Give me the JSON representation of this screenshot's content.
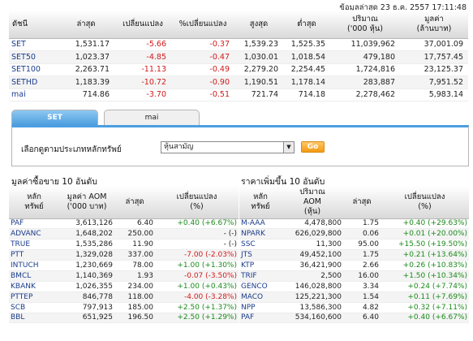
{
  "updated": "ข้อมูลล่าสุด 23 ธ.ค. 2557 17:11:48",
  "index_table": {
    "headers": [
      "ดัชนี",
      "ล่าสุด",
      "เปลี่ยนแปลง",
      "%เปลี่ยนแปลง",
      "สูงสุด",
      "ต่ำสุด",
      "ปริมาณ\n('000 หุ้น)",
      "มูลค่า\n(ล้านบาท)"
    ],
    "rows": [
      {
        "name": "SET",
        "last": "1,531.17",
        "change": "-5.66",
        "pct": "-0.37",
        "high": "1,539.23",
        "low": "1,525.35",
        "volume": "11,039,962",
        "value": "37,001.09"
      },
      {
        "name": "SET50",
        "last": "1,023.37",
        "change": "-4.85",
        "pct": "-0.47",
        "high": "1,030.01",
        "low": "1,018.54",
        "volume": "479,180",
        "value": "17,757.45"
      },
      {
        "name": "SET100",
        "last": "2,263.71",
        "change": "-11.13",
        "pct": "-0.49",
        "high": "2,279.20",
        "low": "2,254.45",
        "volume": "1,724,816",
        "value": "23,125.37"
      },
      {
        "name": "SETHD",
        "last": "1,183.39",
        "change": "-10.72",
        "pct": "-0.90",
        "high": "1,190.51",
        "low": "1,178.14",
        "volume": "283,887",
        "value": "7,951.52"
      },
      {
        "name": "mai",
        "last": "714.86",
        "change": "-3.70",
        "pct": "-0.51",
        "high": "721.74",
        "low": "714.18",
        "volume": "2,278,462",
        "value": "5,983.14"
      }
    ]
  },
  "tabs": {
    "set": "SET",
    "mai": "mai"
  },
  "filter": {
    "label": "เลือกดูตามประเภทหลักทรัพย์",
    "selected": "หุ้นสามัญ",
    "go": "Go"
  },
  "left": {
    "title": "มูลค่าซื้อขาย 10 อันดับ",
    "headers": [
      "หลัก\nทรัพย์",
      "มูลค่า AOM\n('000 บาท)",
      "ล่าสุด",
      "เปลี่ยนแปลง\n(%)"
    ],
    "rows": [
      {
        "sym": "PAF",
        "val": "3,613,126",
        "last": "6.40",
        "chg": "+0.40 (+6.67%)",
        "dir": "pos"
      },
      {
        "sym": "ADVANC",
        "val": "1,648,202",
        "last": "250.00",
        "chg": "- (-)",
        "dir": "flat"
      },
      {
        "sym": "TRUE",
        "val": "1,535,286",
        "last": "11.90",
        "chg": "- (-)",
        "dir": "flat"
      },
      {
        "sym": "PTT",
        "val": "1,329,028",
        "last": "337.00",
        "chg": "-7.00 (-2.03%)",
        "dir": "neg"
      },
      {
        "sym": "INTUCH",
        "val": "1,230,669",
        "last": "78.00",
        "chg": "+1.00 (+1.30%)",
        "dir": "pos"
      },
      {
        "sym": "BMCL",
        "val": "1,140,369",
        "last": "1.93",
        "chg": "-0.07 (-3.50%)",
        "dir": "neg"
      },
      {
        "sym": "KBANK",
        "val": "1,026,355",
        "last": "234.00",
        "chg": "+1.00 (+0.43%)",
        "dir": "pos"
      },
      {
        "sym": "PTTEP",
        "val": "846,778",
        "last": "118.00",
        "chg": "-4.00 (-3.28%)",
        "dir": "neg"
      },
      {
        "sym": "SCB",
        "val": "797,913",
        "last": "185.00",
        "chg": "+2.50 (+1.37%)",
        "dir": "pos"
      },
      {
        "sym": "BBL",
        "val": "651,925",
        "last": "196.50",
        "chg": "+2.50 (+1.29%)",
        "dir": "pos"
      }
    ]
  },
  "right": {
    "title": "ราคาเพิ่มขึ้น 10 อันดับ",
    "headers": [
      "หลัก\nทรัพย์",
      "ปริมาณ\nAOM\n(หุ้น)",
      "ล่าสุด",
      "เปลี่ยนแปลง\n(%)"
    ],
    "rows": [
      {
        "sym": "M-AAA",
        "vol": "4,478,800",
        "last": "1.75",
        "chg": "+0.40 (+29.63%)",
        "dir": "pos"
      },
      {
        "sym": "NPARK",
        "vol": "626,029,800",
        "last": "0.06",
        "chg": "+0.01 (+20.00%)",
        "dir": "pos"
      },
      {
        "sym": "SSC",
        "vol": "11,300",
        "last": "95.00",
        "chg": "+15.50 (+19.50%)",
        "dir": "pos"
      },
      {
        "sym": "JTS",
        "vol": "49,452,100",
        "last": "1.75",
        "chg": "+0.21 (+13.64%)",
        "dir": "pos"
      },
      {
        "sym": "KTP",
        "vol": "36,421,900",
        "last": "2.66",
        "chg": "+0.26 (+10.83%)",
        "dir": "pos"
      },
      {
        "sym": "TRIF",
        "vol": "2,500",
        "last": "16.00",
        "chg": "+1.50 (+10.34%)",
        "dir": "pos"
      },
      {
        "sym": "GENCO",
        "vol": "146,028,800",
        "last": "3.34",
        "chg": "+0.24 (+7.74%)",
        "dir": "pos"
      },
      {
        "sym": "MACO",
        "vol": "125,221,300",
        "last": "1.54",
        "chg": "+0.11 (+7.69%)",
        "dir": "pos"
      },
      {
        "sym": "NPP",
        "vol": "13,586,300",
        "last": "4.82",
        "chg": "+0.32 (+7.11%)",
        "dir": "pos"
      },
      {
        "sym": "PAF",
        "vol": "534,160,600",
        "last": "6.40",
        "chg": "+0.40 (+6.67%)",
        "dir": "pos"
      }
    ]
  }
}
